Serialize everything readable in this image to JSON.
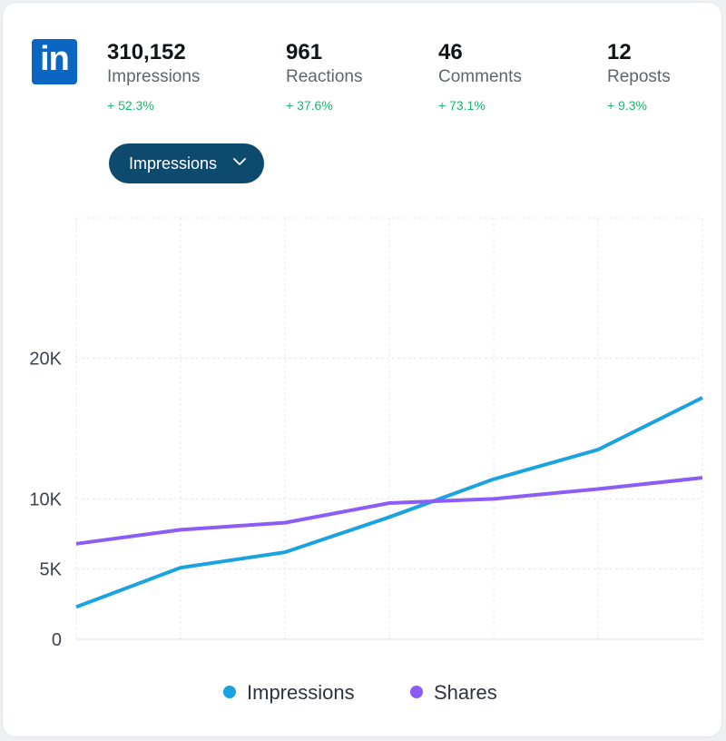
{
  "brand": {
    "logo_text": "in",
    "name": "LinkedIn",
    "color": "#0a66c2"
  },
  "stats": [
    {
      "value": "310,152",
      "label": "Impressions",
      "change": "+ 52.3%"
    },
    {
      "value": "961",
      "label": "Reactions",
      "change": "+ 37.6%"
    },
    {
      "value": "46",
      "label": "Comments",
      "change": "+ 73.1%"
    },
    {
      "value": "12",
      "label": "Reposts",
      "change": "+ 9.3%"
    }
  ],
  "dropdown": {
    "selected": "Impressions"
  },
  "chart_data": {
    "type": "line",
    "x": [
      1,
      2,
      3,
      4,
      5,
      6,
      7
    ],
    "ylim": [
      0,
      30000
    ],
    "yticks": [
      0,
      5000,
      10000,
      20000
    ],
    "ytick_labels": [
      "0",
      "5K",
      "10K",
      "20K"
    ],
    "grid": true,
    "legend_position": "bottom-center",
    "series": [
      {
        "name": "Impressions",
        "color": "#1aa3e0",
        "values": [
          2300,
          5100,
          6200,
          8700,
          11400,
          13500,
          17200
        ]
      },
      {
        "name": "Shares",
        "color": "#8b5cf6",
        "values": [
          6800,
          7800,
          8300,
          9700,
          10000,
          10700,
          11500
        ]
      }
    ]
  }
}
